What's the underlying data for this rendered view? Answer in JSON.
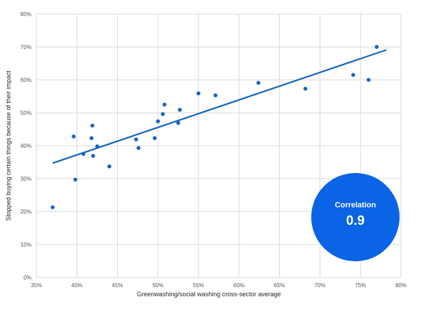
{
  "chart_data": {
    "type": "scatter",
    "xlabel": "Greenwashing/social washing cross-sector average",
    "ylabel": "Stopped buying certain things because of their impact",
    "xlim": [
      0.35,
      0.8
    ],
    "ylim": [
      0.0,
      0.8
    ],
    "x_ticks": [
      "35%",
      "40%",
      "45%",
      "50%",
      "55%",
      "60%",
      "65%",
      "70%",
      "75%",
      "80%"
    ],
    "y_ticks": [
      "0%",
      "10%",
      "20%",
      "30%",
      "40%",
      "50%",
      "60%",
      "70%",
      "80%"
    ],
    "grid": "vertical and horizontal",
    "point_color": "#1565C0",
    "points": [
      {
        "x": 0.37,
        "y": 0.213
      },
      {
        "x": 0.396,
        "y": 0.428
      },
      {
        "x": 0.398,
        "y": 0.297
      },
      {
        "x": 0.408,
        "y": 0.375
      },
      {
        "x": 0.418,
        "y": 0.423
      },
      {
        "x": 0.419,
        "y": 0.461
      },
      {
        "x": 0.42,
        "y": 0.369
      },
      {
        "x": 0.425,
        "y": 0.398
      },
      {
        "x": 0.44,
        "y": 0.337
      },
      {
        "x": 0.473,
        "y": 0.419
      },
      {
        "x": 0.476,
        "y": 0.393
      },
      {
        "x": 0.496,
        "y": 0.423
      },
      {
        "x": 0.5,
        "y": 0.474
      },
      {
        "x": 0.506,
        "y": 0.496
      },
      {
        "x": 0.508,
        "y": 0.525
      },
      {
        "x": 0.525,
        "y": 0.469
      },
      {
        "x": 0.527,
        "y": 0.509
      },
      {
        "x": 0.55,
        "y": 0.559
      },
      {
        "x": 0.571,
        "y": 0.553
      },
      {
        "x": 0.624,
        "y": 0.591
      },
      {
        "x": 0.682,
        "y": 0.573
      },
      {
        "x": 0.741,
        "y": 0.615
      },
      {
        "x": 0.76,
        "y": 0.6
      },
      {
        "x": 0.77,
        "y": 0.7
      }
    ],
    "trendline": {
      "color": "#1565C0",
      "x": [
        0.37,
        0.782
      ],
      "y": [
        0.347,
        0.691
      ]
    },
    "annotation": {
      "label": "Correlation",
      "value": "0.9",
      "color": "#0B63E5"
    }
  }
}
